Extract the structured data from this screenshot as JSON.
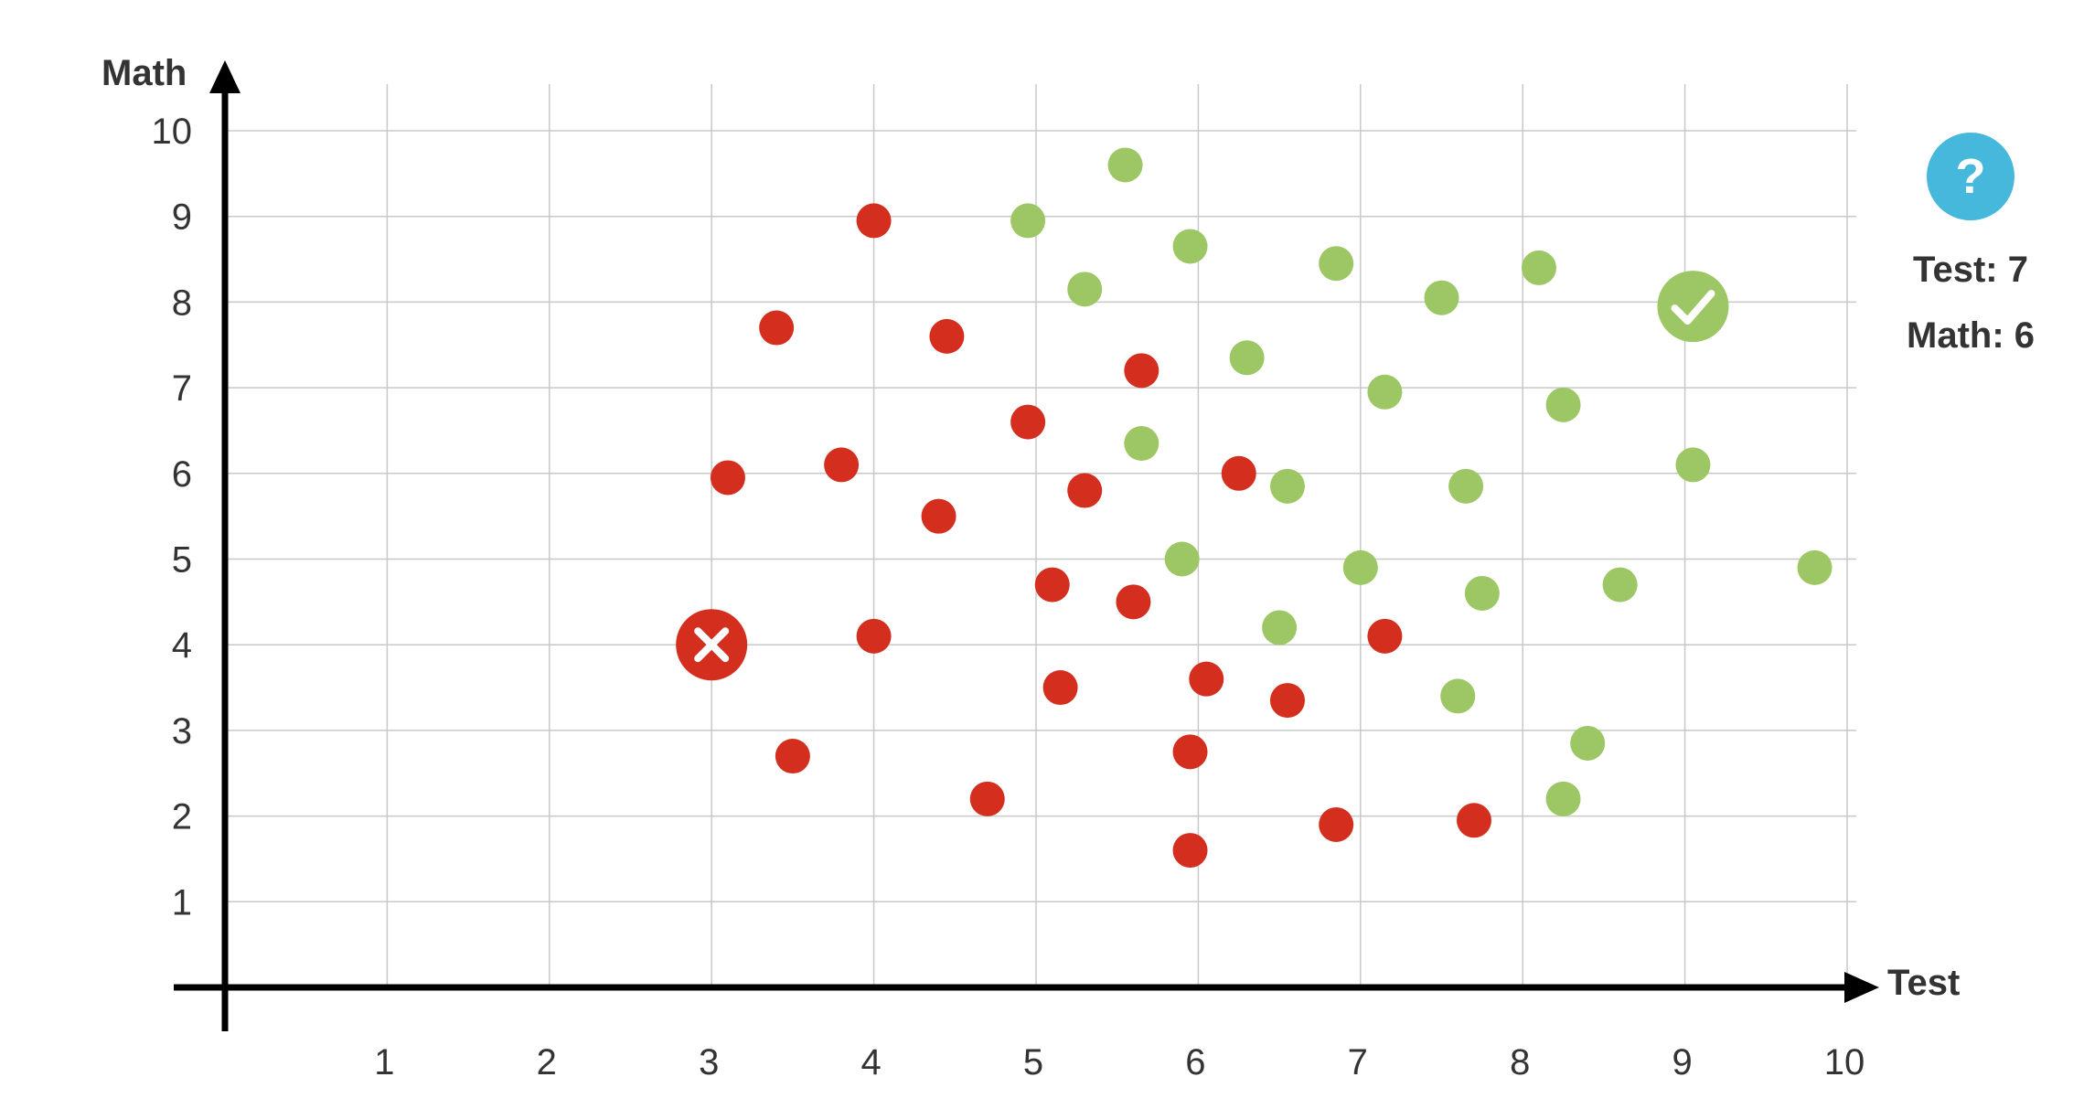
{
  "chart_data": {
    "type": "scatter",
    "xlabel": "Test",
    "ylabel": "Math",
    "xlim": [
      0,
      10
    ],
    "ylim": [
      0,
      10
    ],
    "x_ticks": [
      1,
      2,
      3,
      4,
      5,
      6,
      7,
      8,
      9,
      10
    ],
    "y_ticks": [
      1,
      2,
      3,
      4,
      5,
      6,
      7,
      8,
      9,
      10
    ],
    "grid": true,
    "colors": {
      "red": "#d42f1e",
      "green": "#9cc764",
      "query": "#45b8dc"
    },
    "series": [
      {
        "color": "red",
        "points": [
          {
            "x": 4.0,
            "y": 8.95
          },
          {
            "x": 3.4,
            "y": 7.7
          },
          {
            "x": 4.45,
            "y": 7.6
          },
          {
            "x": 5.65,
            "y": 7.2
          },
          {
            "x": 4.95,
            "y": 6.6
          },
          {
            "x": 3.1,
            "y": 5.95
          },
          {
            "x": 3.8,
            "y": 6.1
          },
          {
            "x": 4.4,
            "y": 5.5
          },
          {
            "x": 5.3,
            "y": 5.8
          },
          {
            "x": 6.25,
            "y": 6.0
          },
          {
            "x": 5.1,
            "y": 4.7
          },
          {
            "x": 5.6,
            "y": 4.5
          },
          {
            "x": 4.0,
            "y": 4.1
          },
          {
            "x": 7.15,
            "y": 4.1
          },
          {
            "x": 5.15,
            "y": 3.5
          },
          {
            "x": 6.05,
            "y": 3.6
          },
          {
            "x": 6.55,
            "y": 3.35
          },
          {
            "x": 3.5,
            "y": 2.7
          },
          {
            "x": 4.7,
            "y": 2.2
          },
          {
            "x": 5.95,
            "y": 2.75
          },
          {
            "x": 5.95,
            "y": 1.6
          },
          {
            "x": 6.85,
            "y": 1.9
          },
          {
            "x": 7.7,
            "y": 1.95
          }
        ]
      },
      {
        "color": "green",
        "points": [
          {
            "x": 5.55,
            "y": 9.6
          },
          {
            "x": 4.95,
            "y": 8.95
          },
          {
            "x": 5.95,
            "y": 8.65
          },
          {
            "x": 5.3,
            "y": 8.15
          },
          {
            "x": 6.85,
            "y": 8.45
          },
          {
            "x": 7.5,
            "y": 8.05
          },
          {
            "x": 8.1,
            "y": 8.4
          },
          {
            "x": 6.3,
            "y": 7.35
          },
          {
            "x": 7.15,
            "y": 6.95
          },
          {
            "x": 8.25,
            "y": 6.8
          },
          {
            "x": 5.65,
            "y": 6.35
          },
          {
            "x": 6.55,
            "y": 5.85
          },
          {
            "x": 7.65,
            "y": 5.85
          },
          {
            "x": 9.05,
            "y": 6.1
          },
          {
            "x": 5.9,
            "y": 5.0
          },
          {
            "x": 7.0,
            "y": 4.9
          },
          {
            "x": 7.75,
            "y": 4.6
          },
          {
            "x": 8.6,
            "y": 4.7
          },
          {
            "x": 9.8,
            "y": 4.9
          },
          {
            "x": 6.5,
            "y": 4.2
          },
          {
            "x": 7.6,
            "y": 3.4
          },
          {
            "x": 8.4,
            "y": 2.85
          },
          {
            "x": 8.25,
            "y": 2.2
          }
        ]
      }
    ],
    "markers": [
      {
        "type": "cross",
        "color": "red",
        "x": 3.0,
        "y": 4.0
      },
      {
        "type": "check",
        "color": "green",
        "x": 9.05,
        "y": 7.95
      }
    ],
    "query": {
      "symbol": "?",
      "test_label": "Test: 7",
      "math_label": "Math: 6"
    }
  }
}
